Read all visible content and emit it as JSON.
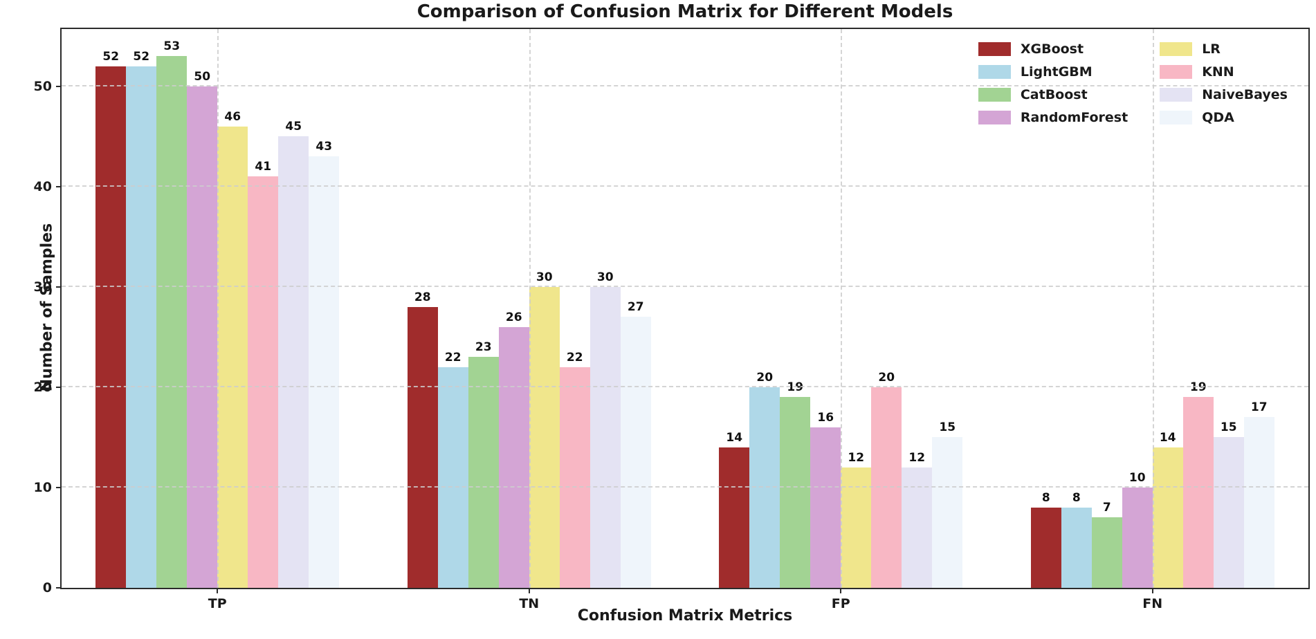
{
  "title": "Comparison of Confusion Matrix for Different Models",
  "chart_data": {
    "type": "bar",
    "title": "Comparison of Confusion Matrix for Different Models",
    "xlabel": "Confusion Matrix Metrics",
    "ylabel": "Number of Samples",
    "categories": [
      "TP",
      "TN",
      "FP",
      "FN"
    ],
    "series": [
      {
        "name": "XGBoost",
        "color": "#A02C2C",
        "values": [
          52,
          28,
          14,
          8
        ]
      },
      {
        "name": "LightGBM",
        "color": "#AFD8E8",
        "values": [
          52,
          22,
          20,
          8
        ]
      },
      {
        "name": "CatBoost",
        "color": "#A2D393",
        "values": [
          53,
          23,
          19,
          7
        ]
      },
      {
        "name": "RandomForest",
        "color": "#D4A5D5",
        "values": [
          50,
          26,
          16,
          10
        ]
      },
      {
        "name": "LR",
        "color": "#F0E68C",
        "values": [
          46,
          30,
          12,
          14
        ]
      },
      {
        "name": "KNN",
        "color": "#F8B7C4",
        "values": [
          41,
          22,
          20,
          19
        ]
      },
      {
        "name": "NaiveBayes",
        "color": "#E4E3F3",
        "values": [
          45,
          30,
          12,
          15
        ]
      },
      {
        "name": "QDA",
        "color": "#EFF5FB",
        "values": [
          43,
          27,
          15,
          17
        ]
      }
    ],
    "yticks": [
      0,
      10,
      20,
      30,
      40,
      50
    ],
    "ylim": [
      0,
      55.7
    ],
    "grid": true,
    "grid_style": "dashed",
    "grid_above_bars": true,
    "legend_position": "upper right",
    "legend_frame": false,
    "legend_columns": [
      [
        "XGBoost",
        "LightGBM",
        "CatBoost",
        "RandomForest"
      ],
      [
        "LR",
        "KNN",
        "NaiveBayes",
        "QDA"
      ]
    ]
  }
}
